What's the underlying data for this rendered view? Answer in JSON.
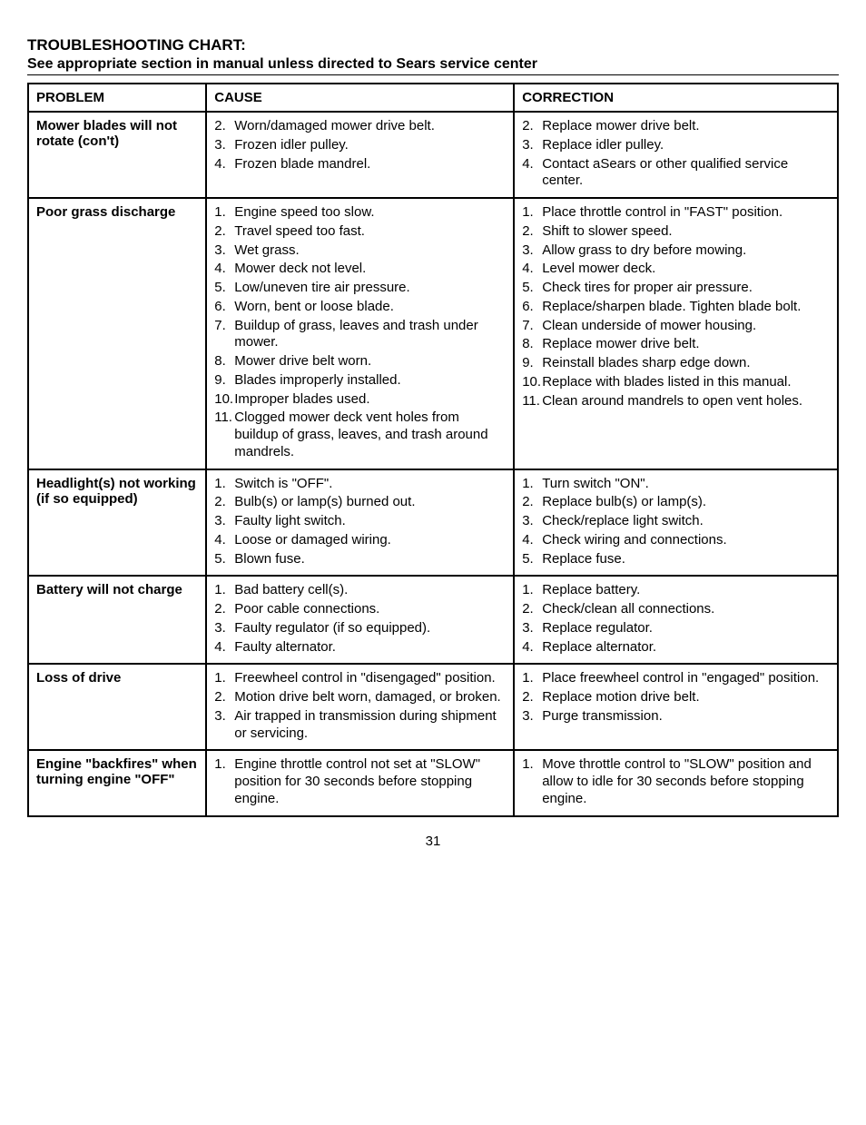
{
  "title": "TROUBLESHOOTING CHART:",
  "subtitle": "See appropriate section in manual unless directed to Sears service center",
  "headers": {
    "problem": "PROBLEM",
    "cause": "CAUSE",
    "correction": "CORRECTION"
  },
  "rows": [
    {
      "problem": "Mower blades will not rotate (con't)",
      "causes": [
        {
          "n": "2.",
          "t": "Worn/damaged mower drive belt."
        },
        {
          "n": "3.",
          "t": "Frozen idler pulley."
        },
        {
          "n": "4.",
          "t": "Frozen blade mandrel."
        }
      ],
      "corrections": [
        {
          "n": "2.",
          "t": "Replace mower drive belt."
        },
        {
          "n": "3.",
          "t": "Replace idler pulley."
        },
        {
          "n": "4.",
          "t": "Contact aSears or other qualified service center."
        }
      ]
    },
    {
      "problem": "Poor grass discharge",
      "causes": [
        {
          "n": "1.",
          "t": "Engine speed too slow."
        },
        {
          "n": "2.",
          "t": "Travel speed too fast."
        },
        {
          "n": "3.",
          "t": "Wet grass."
        },
        {
          "n": "4.",
          "t": "Mower deck not level."
        },
        {
          "n": "5.",
          "t": "Low/uneven tire air pressure."
        },
        {
          "n": "6.",
          "t": "Worn, bent or loose blade."
        },
        {
          "n": "7.",
          "t": "Buildup of grass, leaves and trash under mower."
        },
        {
          "n": "8.",
          "t": "Mower drive belt worn."
        },
        {
          "n": "9.",
          "t": "Blades improperly installed."
        },
        {
          "n": "10.",
          "t": "Improper blades used."
        },
        {
          "n": "11.",
          "t": "Clogged mower deck vent holes from buildup of grass, leaves, and trash around mandrels."
        }
      ],
      "corrections": [
        {
          "n": "1.",
          "t": "Place throttle control in \"FAST\" position."
        },
        {
          "n": "2.",
          "t": "Shift to slower speed."
        },
        {
          "n": "3.",
          "t": "Allow grass to dry before mowing."
        },
        {
          "n": "4.",
          "t": "Level mower deck."
        },
        {
          "n": "5.",
          "t": "Check tires for proper air pressure."
        },
        {
          "n": "6.",
          "t": "Replace/sharpen blade. Tighten blade bolt."
        },
        {
          "n": "7.",
          "t": "Clean underside of mower housing."
        },
        {
          "n": "8.",
          "t": "Replace mower drive belt."
        },
        {
          "n": "9.",
          "t": "Reinstall blades sharp edge down."
        },
        {
          "n": "10.",
          "t": "Replace with blades listed in this manual."
        },
        {
          "n": "11.",
          "t": "Clean around mandrels to open vent holes."
        }
      ]
    },
    {
      "problem": "Headlight(s) not working\n(if so equipped)",
      "causes": [
        {
          "n": "1.",
          "t": "Switch is \"OFF\"."
        },
        {
          "n": "2.",
          "t": "Bulb(s) or lamp(s) burned out."
        },
        {
          "n": "3.",
          "t": "Faulty light switch."
        },
        {
          "n": "4.",
          "t": "Loose or damaged wiring."
        },
        {
          "n": "5.",
          "t": "Blown fuse."
        }
      ],
      "corrections": [
        {
          "n": "1.",
          "t": "Turn switch \"ON\"."
        },
        {
          "n": "2.",
          "t": "Replace bulb(s) or lamp(s)."
        },
        {
          "n": "3.",
          "t": "Check/replace light switch."
        },
        {
          "n": "4.",
          "t": "Check wiring and connections."
        },
        {
          "n": "5.",
          "t": "Replace fuse."
        }
      ]
    },
    {
      "problem": "Battery will not charge",
      "causes": [
        {
          "n": "1.",
          "t": "Bad battery cell(s)."
        },
        {
          "n": "2.",
          "t": "Poor cable connections."
        },
        {
          "n": "3.",
          "t": "Faulty regulator (if so equipped)."
        },
        {
          "n": "4.",
          "t": "Faulty alternator."
        }
      ],
      "corrections": [
        {
          "n": "1.",
          "t": "Replace battery."
        },
        {
          "n": "2.",
          "t": "Check/clean all connections."
        },
        {
          "n": "3.",
          "t": "Replace regulator."
        },
        {
          "n": "4.",
          "t": "Replace alternator."
        }
      ]
    },
    {
      "problem": "Loss of drive",
      "causes": [
        {
          "n": "1.",
          "t": "Freewheel control in \"disengaged\" position."
        },
        {
          "n": "2.",
          "t": "Motion drive belt worn, damaged, or broken."
        },
        {
          "n": "3.",
          "t": "Air trapped in transmission during shipment or servicing."
        }
      ],
      "corrections": [
        {
          "n": "1.",
          "t": "Place freewheel control in \"engaged\" position."
        },
        {
          "n": "2.",
          "t": "Replace motion drive belt."
        },
        {
          "n": "3.",
          "t": "Purge transmission."
        }
      ]
    },
    {
      "problem": "Engine \"backfires\" when turning engine \"OFF\"",
      "causes": [
        {
          "n": "1.",
          "t": "Engine throttle control not set at \"SLOW\" position for 30 seconds before stopping engine."
        }
      ],
      "corrections": [
        {
          "n": "1.",
          "t": "Move throttle control to \"SLOW\" position and allow to idle for 30 seconds before stopping engine."
        }
      ]
    }
  ],
  "page_number": "31"
}
